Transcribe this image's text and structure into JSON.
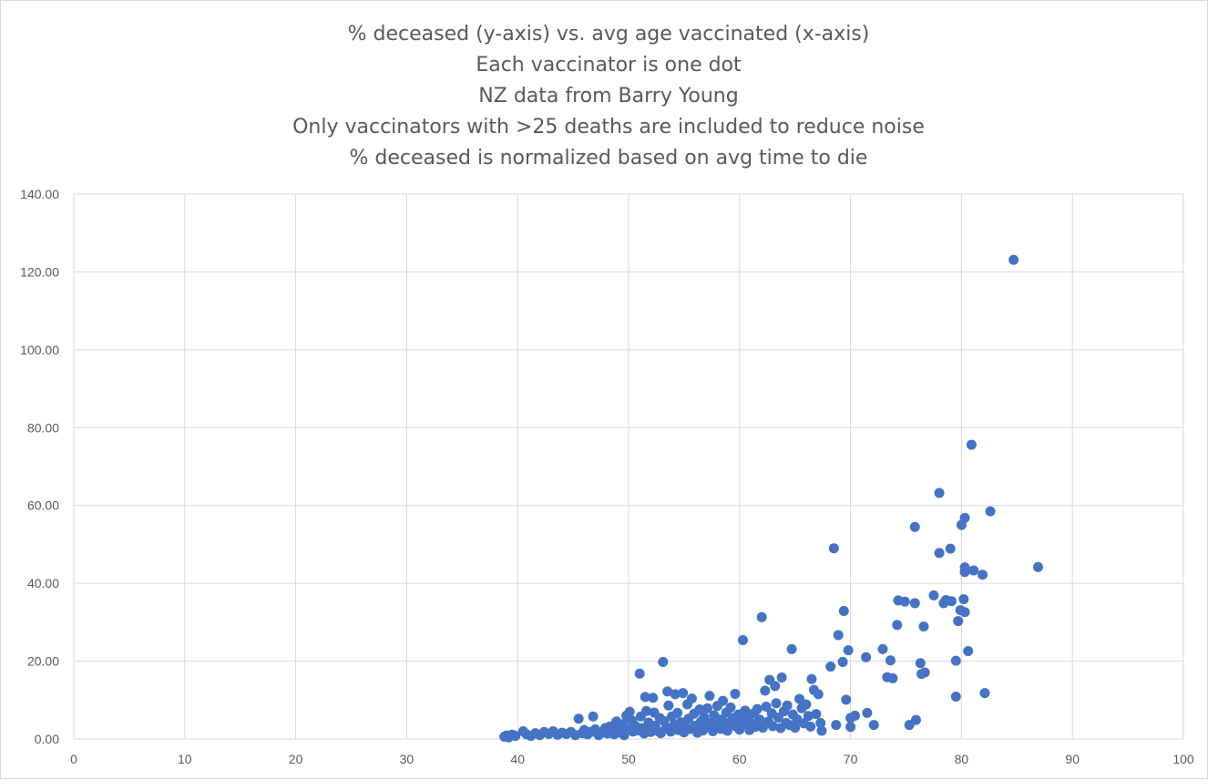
{
  "chart_data": {
    "type": "scatter",
    "title_lines": [
      "% deceased (y-axis) vs. avg age vaccinated (x-axis)",
      "Each vaccinator is one dot",
      "NZ data from Barry Young",
      "Only vaccinators with >25 deaths are included to reduce noise",
      "% deceased is normalized based on avg time to die"
    ],
    "xlabel": "",
    "ylabel": "",
    "xlim": [
      0,
      100
    ],
    "ylim": [
      0,
      140
    ],
    "x_ticks": [
      "0",
      "10",
      "20",
      "30",
      "40",
      "50",
      "60",
      "70",
      "80",
      "90",
      "100"
    ],
    "y_ticks": [
      "0.00",
      "20.00",
      "40.00",
      "60.00",
      "80.00",
      "100.00",
      "120.00",
      "140.00"
    ],
    "grid": true,
    "marker_color": "#4472C4",
    "series": [
      {
        "points": [
          [
            38.8,
            0.6
          ],
          [
            39.0,
            0.9
          ],
          [
            39.2,
            0.4
          ],
          [
            39.5,
            1.1
          ],
          [
            39.8,
            0.8
          ],
          [
            40.5,
            2.0
          ],
          [
            40.8,
            1.2
          ],
          [
            41.2,
            0.8
          ],
          [
            41.6,
            1.5
          ],
          [
            42.0,
            1.0
          ],
          [
            42.4,
            1.8
          ],
          [
            42.8,
            1.3
          ],
          [
            43.2,
            2.0
          ],
          [
            43.6,
            1.1
          ],
          [
            44.0,
            1.6
          ],
          [
            44.4,
            1.3
          ],
          [
            44.8,
            1.8
          ],
          [
            45.2,
            1.0
          ],
          [
            45.5,
            5.2
          ],
          [
            45.8,
            1.5
          ],
          [
            46.0,
            2.3
          ],
          [
            46.3,
            1.2
          ],
          [
            46.6,
            1.8
          ],
          [
            46.8,
            5.8
          ],
          [
            47.0,
            2.5
          ],
          [
            47.3,
            1.0
          ],
          [
            47.6,
            1.6
          ],
          [
            47.9,
            2.8
          ],
          [
            48.1,
            1.4
          ],
          [
            48.3,
            3.2
          ],
          [
            48.5,
            2.0
          ],
          [
            48.7,
            1.2
          ],
          [
            48.9,
            4.5
          ],
          [
            49.1,
            2.6
          ],
          [
            49.3,
            1.6
          ],
          [
            49.5,
            3.8
          ],
          [
            49.6,
            1.0
          ],
          [
            49.8,
            6.0
          ],
          [
            50.0,
            2.4
          ],
          [
            50.1,
            7.0
          ],
          [
            50.3,
            4.8
          ],
          [
            50.4,
            1.9
          ],
          [
            50.6,
            3.4
          ],
          [
            50.8,
            2.2
          ],
          [
            51.0,
            16.8
          ],
          [
            51.1,
            5.8
          ],
          [
            51.2,
            2.8
          ],
          [
            51.4,
            1.4
          ],
          [
            51.5,
            10.8
          ],
          [
            51.6,
            7.2
          ],
          [
            51.8,
            4.2
          ],
          [
            51.9,
            2.5
          ],
          [
            52.0,
            1.8
          ],
          [
            52.2,
            10.6
          ],
          [
            52.3,
            6.8
          ],
          [
            52.4,
            3.4
          ],
          [
            52.6,
            2.1
          ],
          [
            52.8,
            5.4
          ],
          [
            52.9,
            1.5
          ],
          [
            53.1,
            19.8
          ],
          [
            53.2,
            4.6
          ],
          [
            53.4,
            2.9
          ],
          [
            53.5,
            12.2
          ],
          [
            53.6,
            8.6
          ],
          [
            53.8,
            1.9
          ],
          [
            53.9,
            5.8
          ],
          [
            54.1,
            3.6
          ],
          [
            54.2,
            11.5
          ],
          [
            54.4,
            6.7
          ],
          [
            54.5,
            2.3
          ],
          [
            54.7,
            4.3
          ],
          [
            54.9,
            11.8
          ],
          [
            55.0,
            1.7
          ],
          [
            55.1,
            3.1
          ],
          [
            55.3,
            8.9
          ],
          [
            55.4,
            5.2
          ],
          [
            55.6,
            2.6
          ],
          [
            55.7,
            10.4
          ],
          [
            55.9,
            6.5
          ],
          [
            56.0,
            3.4
          ],
          [
            56.2,
            1.6
          ],
          [
            56.4,
            7.6
          ],
          [
            56.5,
            4.4
          ],
          [
            56.7,
            2.2
          ],
          [
            56.8,
            5.6
          ],
          [
            57.0,
            3.1
          ],
          [
            57.1,
            7.9
          ],
          [
            57.3,
            11.1
          ],
          [
            57.4,
            4.1
          ],
          [
            57.6,
            2.0
          ],
          [
            57.7,
            6.1
          ],
          [
            57.9,
            3.5
          ],
          [
            58.0,
            8.5
          ],
          [
            58.2,
            5.0
          ],
          [
            58.3,
            2.6
          ],
          [
            58.5,
            9.8
          ],
          [
            58.6,
            4.4
          ],
          [
            58.8,
            6.8
          ],
          [
            58.9,
            2.1
          ],
          [
            59.1,
            3.9
          ],
          [
            59.2,
            8.1
          ],
          [
            59.4,
            5.4
          ],
          [
            59.6,
            11.6
          ],
          [
            59.7,
            3.2
          ],
          [
            59.9,
            6.3
          ],
          [
            60.0,
            2.4
          ],
          [
            60.2,
            4.7
          ],
          [
            60.3,
            25.4
          ],
          [
            60.5,
            7.3
          ],
          [
            60.6,
            3.8
          ],
          [
            60.8,
            5.6
          ],
          [
            60.9,
            2.3
          ],
          [
            61.1,
            4.0
          ],
          [
            61.3,
            6.6
          ],
          [
            61.4,
            3.1
          ],
          [
            61.6,
            7.7
          ],
          [
            61.8,
            5.0
          ],
          [
            62.0,
            31.3
          ],
          [
            62.1,
            2.9
          ],
          [
            62.3,
            12.4
          ],
          [
            62.4,
            8.3
          ],
          [
            62.6,
            4.5
          ],
          [
            62.7,
            15.2
          ],
          [
            62.9,
            6.6
          ],
          [
            63.0,
            3.3
          ],
          [
            63.2,
            13.6
          ],
          [
            63.3,
            9.2
          ],
          [
            63.5,
            5.5
          ],
          [
            63.7,
            2.8
          ],
          [
            63.8,
            15.8
          ],
          [
            64.0,
            7.1
          ],
          [
            64.2,
            4.1
          ],
          [
            64.3,
            8.6
          ],
          [
            64.5,
            3.6
          ],
          [
            64.7,
            23.1
          ],
          [
            64.8,
            6.3
          ],
          [
            65.0,
            2.9
          ],
          [
            65.2,
            5.0
          ],
          [
            65.4,
            10.3
          ],
          [
            65.6,
            7.9
          ],
          [
            65.8,
            4.0
          ],
          [
            66.0,
            8.9
          ],
          [
            66.2,
            5.9
          ],
          [
            66.4,
            3.2
          ],
          [
            66.5,
            15.4
          ],
          [
            66.7,
            12.6
          ],
          [
            66.9,
            6.4
          ],
          [
            67.1,
            11.5
          ],
          [
            67.3,
            4.1
          ],
          [
            67.4,
            2.1
          ],
          [
            68.2,
            18.6
          ],
          [
            68.5,
            49.0
          ],
          [
            68.7,
            3.6
          ],
          [
            68.9,
            26.7
          ],
          [
            69.3,
            19.8
          ],
          [
            69.4,
            32.9
          ],
          [
            69.6,
            10.1
          ],
          [
            69.8,
            22.8
          ],
          [
            70.0,
            5.4
          ],
          [
            70.0,
            3.1
          ],
          [
            70.4,
            6.0
          ],
          [
            71.4,
            21.0
          ],
          [
            71.5,
            6.7
          ],
          [
            72.1,
            3.6
          ],
          [
            72.9,
            23.1
          ],
          [
            73.3,
            15.9
          ],
          [
            73.6,
            20.2
          ],
          [
            73.8,
            15.6
          ],
          [
            74.2,
            29.3
          ],
          [
            74.3,
            35.6
          ],
          [
            74.9,
            35.3
          ],
          [
            75.3,
            3.6
          ],
          [
            75.8,
            54.5
          ],
          [
            75.8,
            34.9
          ],
          [
            75.9,
            4.9
          ],
          [
            76.3,
            19.5
          ],
          [
            76.4,
            16.7
          ],
          [
            76.6,
            28.9
          ],
          [
            76.7,
            17.1
          ],
          [
            77.5,
            36.9
          ],
          [
            78.0,
            63.2
          ],
          [
            78.0,
            47.8
          ],
          [
            78.4,
            34.9
          ],
          [
            78.6,
            35.7
          ],
          [
            79.0,
            48.9
          ],
          [
            79.1,
            35.4
          ],
          [
            79.5,
            20.1
          ],
          [
            79.5,
            10.9
          ],
          [
            79.7,
            30.3
          ],
          [
            79.9,
            33.1
          ],
          [
            80.0,
            55.0
          ],
          [
            80.2,
            35.9
          ],
          [
            80.3,
            56.8
          ],
          [
            80.3,
            44.1
          ],
          [
            80.3,
            42.9
          ],
          [
            80.3,
            32.6
          ],
          [
            80.6,
            22.6
          ],
          [
            80.9,
            75.6
          ],
          [
            81.1,
            43.3
          ],
          [
            81.9,
            42.2
          ],
          [
            82.1,
            11.8
          ],
          [
            82.6,
            58.5
          ],
          [
            84.7,
            123.1
          ],
          [
            86.9,
            44.2
          ]
        ]
      }
    ]
  }
}
